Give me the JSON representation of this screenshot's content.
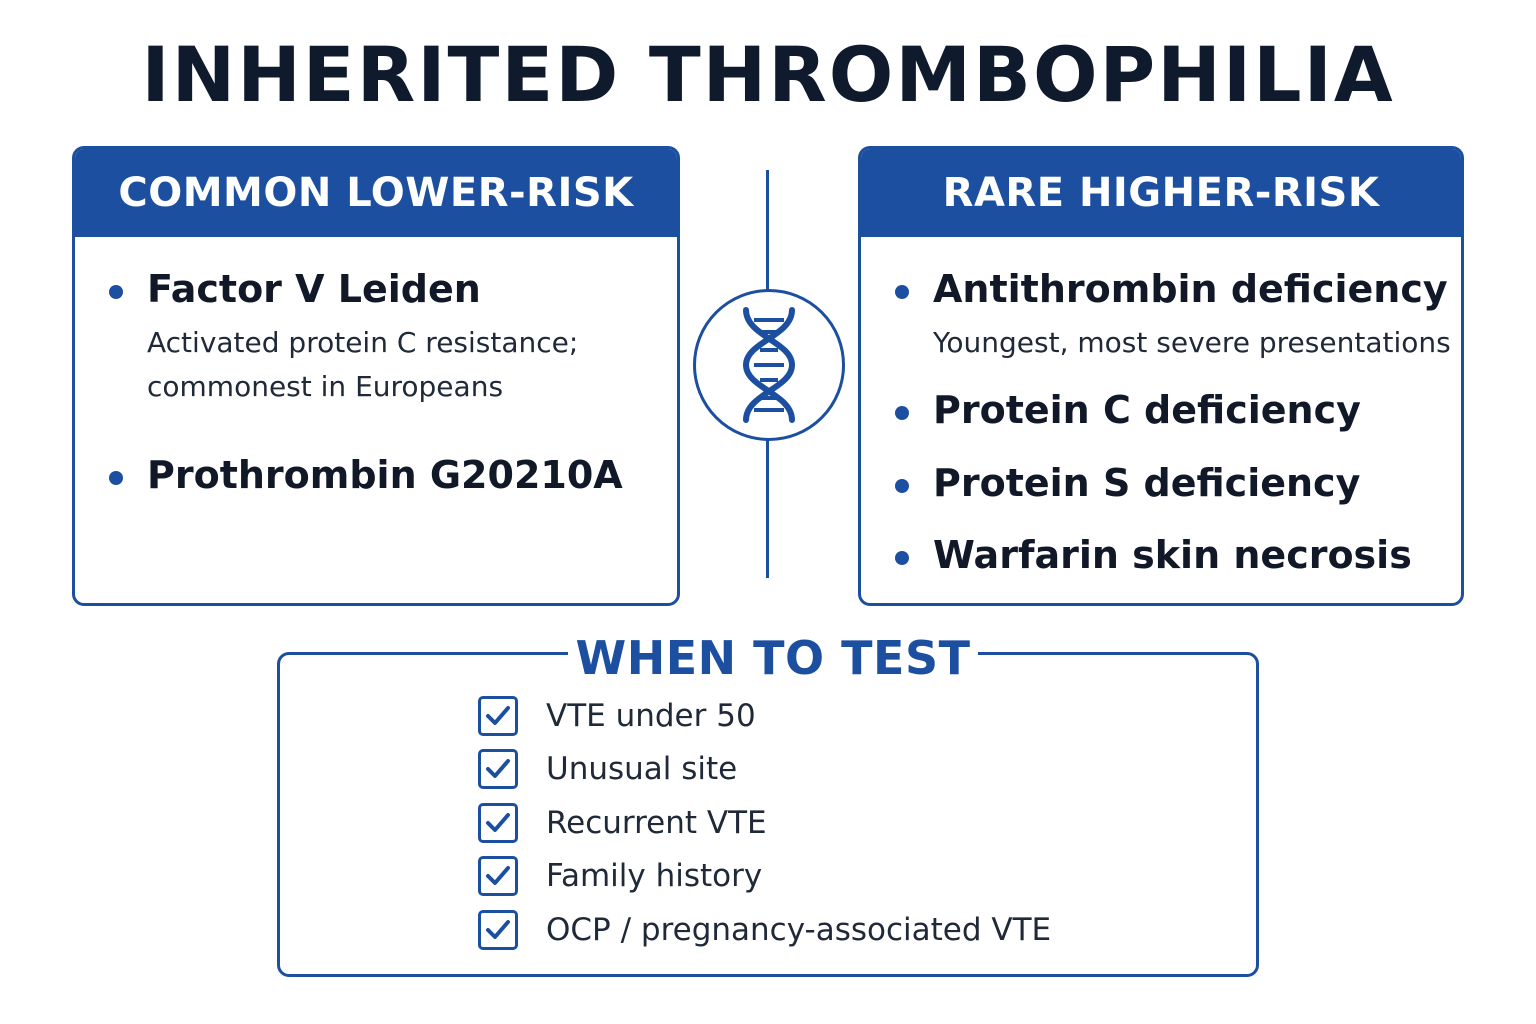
{
  "title": "INHERITED THROMBOPHILIA",
  "common": {
    "header": "COMMON LOWER-RISK",
    "items": [
      {
        "title": "Factor V Leiden",
        "sub": [
          "Activated protein C resistance;",
          "commonest in Europeans"
        ]
      },
      {
        "title": "Prothrombin G20210A"
      }
    ]
  },
  "rare": {
    "header": "RARE HIGHER-RISK",
    "items": [
      {
        "title": "Antithrombin deficiency",
        "sub": [
          "Youngest, most severe presentations"
        ]
      },
      {
        "title": "Protein C deficiency"
      },
      {
        "title": "Protein S deficiency"
      },
      {
        "title": "Warfarin skin necrosis"
      }
    ]
  },
  "center_icon": "dna-icon",
  "when_to_test": {
    "title": "WHEN TO TEST",
    "items": [
      "VTE under 50",
      "Unusual site",
      "Recurrent VTE",
      "Family history",
      "OCP / pregnancy-associated VTE"
    ],
    "check_icon": "checkbox-checked-icon"
  },
  "colors": {
    "accent": "#1d4fa0",
    "title": "#0f1b2d",
    "text": "#111827"
  }
}
